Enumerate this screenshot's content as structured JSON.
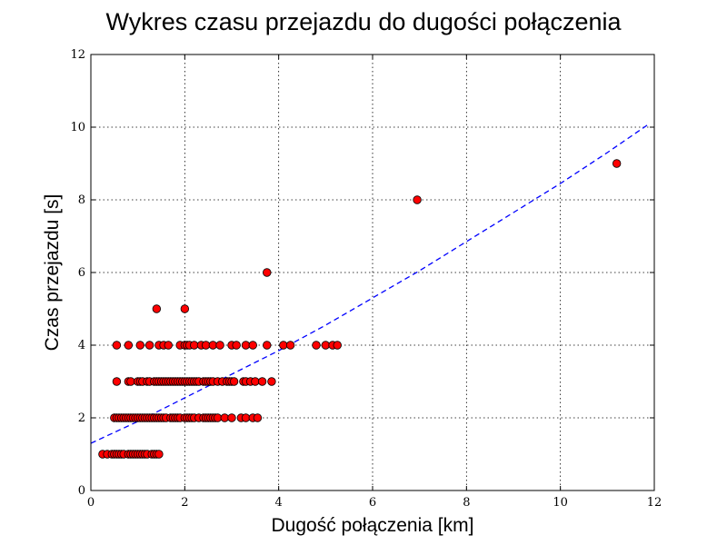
{
  "chart_data": {
    "type": "scatter",
    "title": "Wykres czasu przejazdu do dugości połączenia",
    "xlabel": "Dugość połączenia [km]",
    "ylabel": "Czas przejazdu [s]",
    "xlim": [
      0,
      12
    ],
    "ylim": [
      0,
      12
    ],
    "xticks": [
      "0",
      "2",
      "4",
      "6",
      "8",
      "10",
      "12"
    ],
    "yticks": [
      "0",
      "2",
      "4",
      "6",
      "8",
      "10",
      "12"
    ],
    "grid": true,
    "point_color": "#ff0000",
    "points": [
      {
        "x": 0.25,
        "y": 1
      },
      {
        "x": 0.35,
        "y": 1
      },
      {
        "x": 0.45,
        "y": 1
      },
      {
        "x": 0.5,
        "y": 1
      },
      {
        "x": 0.55,
        "y": 1
      },
      {
        "x": 0.6,
        "y": 1
      },
      {
        "x": 0.65,
        "y": 1
      },
      {
        "x": 0.7,
        "y": 1
      },
      {
        "x": 0.8,
        "y": 1
      },
      {
        "x": 0.85,
        "y": 1
      },
      {
        "x": 0.9,
        "y": 1
      },
      {
        "x": 0.95,
        "y": 1
      },
      {
        "x": 1.0,
        "y": 1
      },
      {
        "x": 1.05,
        "y": 1
      },
      {
        "x": 1.1,
        "y": 1
      },
      {
        "x": 1.15,
        "y": 1
      },
      {
        "x": 1.2,
        "y": 1
      },
      {
        "x": 1.3,
        "y": 1
      },
      {
        "x": 1.35,
        "y": 1
      },
      {
        "x": 1.4,
        "y": 1
      },
      {
        "x": 1.45,
        "y": 1
      },
      {
        "x": 0.5,
        "y": 2
      },
      {
        "x": 0.55,
        "y": 2
      },
      {
        "x": 0.6,
        "y": 2
      },
      {
        "x": 0.65,
        "y": 2
      },
      {
        "x": 0.7,
        "y": 2
      },
      {
        "x": 0.75,
        "y": 2
      },
      {
        "x": 0.8,
        "y": 2
      },
      {
        "x": 0.85,
        "y": 2
      },
      {
        "x": 0.9,
        "y": 2
      },
      {
        "x": 0.95,
        "y": 2
      },
      {
        "x": 1.0,
        "y": 2
      },
      {
        "x": 1.05,
        "y": 2
      },
      {
        "x": 1.1,
        "y": 2
      },
      {
        "x": 1.15,
        "y": 2
      },
      {
        "x": 1.2,
        "y": 2
      },
      {
        "x": 1.25,
        "y": 2
      },
      {
        "x": 1.3,
        "y": 2
      },
      {
        "x": 1.35,
        "y": 2
      },
      {
        "x": 1.4,
        "y": 2
      },
      {
        "x": 1.45,
        "y": 2
      },
      {
        "x": 1.5,
        "y": 2
      },
      {
        "x": 1.55,
        "y": 2
      },
      {
        "x": 1.6,
        "y": 2
      },
      {
        "x": 1.7,
        "y": 2
      },
      {
        "x": 1.75,
        "y": 2
      },
      {
        "x": 1.8,
        "y": 2
      },
      {
        "x": 1.85,
        "y": 2
      },
      {
        "x": 1.9,
        "y": 2
      },
      {
        "x": 2.0,
        "y": 2
      },
      {
        "x": 2.05,
        "y": 2
      },
      {
        "x": 2.1,
        "y": 2
      },
      {
        "x": 2.15,
        "y": 2
      },
      {
        "x": 2.2,
        "y": 2
      },
      {
        "x": 2.3,
        "y": 2
      },
      {
        "x": 2.4,
        "y": 2
      },
      {
        "x": 2.45,
        "y": 2
      },
      {
        "x": 2.5,
        "y": 2
      },
      {
        "x": 2.55,
        "y": 2
      },
      {
        "x": 2.6,
        "y": 2
      },
      {
        "x": 2.65,
        "y": 2
      },
      {
        "x": 2.7,
        "y": 2
      },
      {
        "x": 2.85,
        "y": 2
      },
      {
        "x": 3.0,
        "y": 2
      },
      {
        "x": 3.2,
        "y": 2
      },
      {
        "x": 3.3,
        "y": 2
      },
      {
        "x": 3.45,
        "y": 2
      },
      {
        "x": 3.55,
        "y": 2
      },
      {
        "x": 0.55,
        "y": 3
      },
      {
        "x": 0.8,
        "y": 3
      },
      {
        "x": 0.85,
        "y": 3
      },
      {
        "x": 1.0,
        "y": 3
      },
      {
        "x": 1.05,
        "y": 3
      },
      {
        "x": 1.1,
        "y": 3
      },
      {
        "x": 1.2,
        "y": 3
      },
      {
        "x": 1.25,
        "y": 3
      },
      {
        "x": 1.35,
        "y": 3
      },
      {
        "x": 1.4,
        "y": 3
      },
      {
        "x": 1.45,
        "y": 3
      },
      {
        "x": 1.5,
        "y": 3
      },
      {
        "x": 1.55,
        "y": 3
      },
      {
        "x": 1.6,
        "y": 3
      },
      {
        "x": 1.65,
        "y": 3
      },
      {
        "x": 1.7,
        "y": 3
      },
      {
        "x": 1.75,
        "y": 3
      },
      {
        "x": 1.8,
        "y": 3
      },
      {
        "x": 1.85,
        "y": 3
      },
      {
        "x": 1.9,
        "y": 3
      },
      {
        "x": 1.95,
        "y": 3
      },
      {
        "x": 2.0,
        "y": 3
      },
      {
        "x": 2.05,
        "y": 3
      },
      {
        "x": 2.1,
        "y": 3
      },
      {
        "x": 2.15,
        "y": 3
      },
      {
        "x": 2.2,
        "y": 3
      },
      {
        "x": 2.25,
        "y": 3
      },
      {
        "x": 2.3,
        "y": 3
      },
      {
        "x": 2.4,
        "y": 3
      },
      {
        "x": 2.45,
        "y": 3
      },
      {
        "x": 2.5,
        "y": 3
      },
      {
        "x": 2.55,
        "y": 3
      },
      {
        "x": 2.6,
        "y": 3
      },
      {
        "x": 2.7,
        "y": 3
      },
      {
        "x": 2.8,
        "y": 3
      },
      {
        "x": 2.9,
        "y": 3
      },
      {
        "x": 2.95,
        "y": 3
      },
      {
        "x": 3.0,
        "y": 3
      },
      {
        "x": 3.05,
        "y": 3
      },
      {
        "x": 3.25,
        "y": 3
      },
      {
        "x": 3.3,
        "y": 3
      },
      {
        "x": 3.4,
        "y": 3
      },
      {
        "x": 3.5,
        "y": 3
      },
      {
        "x": 3.65,
        "y": 3
      },
      {
        "x": 3.85,
        "y": 3
      },
      {
        "x": 0.55,
        "y": 4
      },
      {
        "x": 0.8,
        "y": 4
      },
      {
        "x": 1.05,
        "y": 4
      },
      {
        "x": 1.25,
        "y": 4
      },
      {
        "x": 1.45,
        "y": 4
      },
      {
        "x": 1.55,
        "y": 4
      },
      {
        "x": 1.65,
        "y": 4
      },
      {
        "x": 1.9,
        "y": 4
      },
      {
        "x": 2.0,
        "y": 4
      },
      {
        "x": 2.05,
        "y": 4
      },
      {
        "x": 2.1,
        "y": 4
      },
      {
        "x": 2.2,
        "y": 4
      },
      {
        "x": 2.35,
        "y": 4
      },
      {
        "x": 2.45,
        "y": 4
      },
      {
        "x": 2.6,
        "y": 4
      },
      {
        "x": 2.75,
        "y": 4
      },
      {
        "x": 3.0,
        "y": 4
      },
      {
        "x": 3.1,
        "y": 4
      },
      {
        "x": 3.3,
        "y": 4
      },
      {
        "x": 3.45,
        "y": 4
      },
      {
        "x": 3.75,
        "y": 4
      },
      {
        "x": 4.1,
        "y": 4
      },
      {
        "x": 4.25,
        "y": 4
      },
      {
        "x": 4.8,
        "y": 4
      },
      {
        "x": 5.0,
        "y": 4
      },
      {
        "x": 5.15,
        "y": 4
      },
      {
        "x": 5.25,
        "y": 4
      },
      {
        "x": 1.4,
        "y": 5
      },
      {
        "x": 2.0,
        "y": 5
      },
      {
        "x": 3.75,
        "y": 6
      },
      {
        "x": 6.95,
        "y": 8
      },
      {
        "x": 11.2,
        "y": 9
      }
    ],
    "trend": {
      "style": "dashed",
      "color": "#0000ff",
      "x": [
        0.0,
        1.0,
        2.0,
        3.0,
        4.0,
        5.0,
        6.0,
        7.0,
        8.0,
        9.0,
        10.0,
        11.0,
        11.9
      ],
      "y": [
        1.3,
        1.9,
        2.55,
        3.2,
        3.85,
        4.55,
        5.3,
        6.05,
        6.85,
        7.65,
        8.45,
        9.3,
        10.1
      ]
    }
  }
}
